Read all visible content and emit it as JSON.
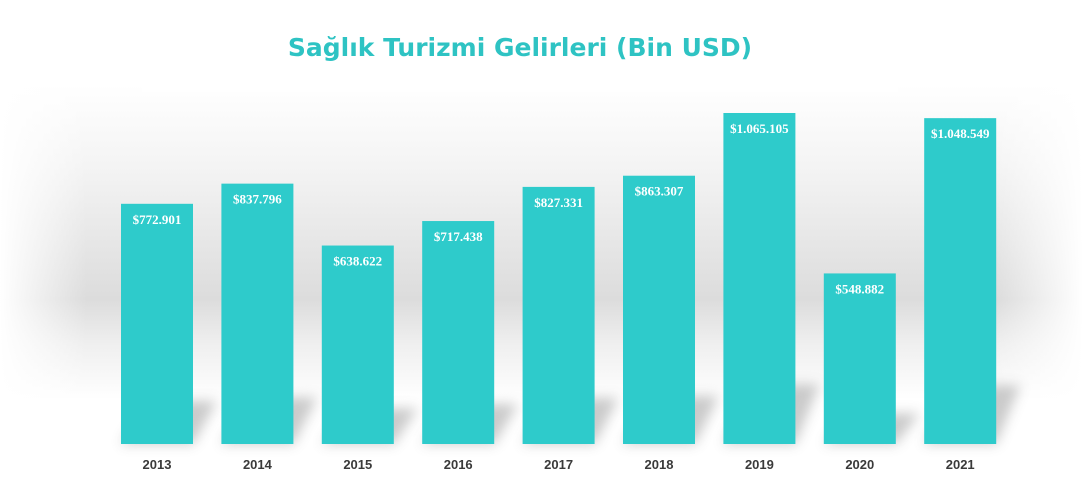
{
  "chart_data": {
    "type": "bar",
    "title": "Sağlık Turizmi Gelirleri (Bin USD)",
    "xlabel": "",
    "ylabel": "",
    "categories": [
      "2013",
      "2014",
      "2015",
      "2016",
      "2017",
      "2018",
      "2019",
      "2020",
      "2021"
    ],
    "values": [
      772901,
      837796,
      638622,
      717438,
      827331,
      863307,
      1065105,
      548882,
      1048549
    ],
    "data_labels": [
      "$772.901",
      "$837.796",
      "$638.622",
      "$717.438",
      "$827.331",
      "$863.307",
      "$1.065.105",
      "$548.882",
      "$1.048.549"
    ],
    "ylim": [
      0,
      1200000
    ],
    "grid": false,
    "legend": "none"
  },
  "colors": {
    "bar": "#2ECBCB",
    "title": "#2EC3C3",
    "tick_text": "#3a3a3a",
    "label_text": "#ffffff"
  }
}
